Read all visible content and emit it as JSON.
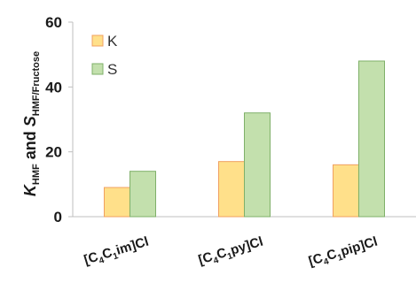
{
  "chart_data": {
    "type": "bar",
    "categories": [
      "[C4C1im]Cl",
      "[C4C1py]Cl",
      "[C4C1pip]Cl"
    ],
    "series": [
      {
        "name": "K",
        "values": [
          9,
          17,
          16
        ],
        "color": "#FFE08A",
        "stroke": "#F0A060"
      },
      {
        "name": "S",
        "values": [
          14,
          32,
          48
        ],
        "color": "#C3E0AD",
        "stroke": "#7FB069"
      }
    ],
    "ylabel": {
      "main1": "K",
      "sub1": "HMF",
      "mid": " and ",
      "main2": "S",
      "sub2": "HMF/Fructose"
    },
    "ylim": [
      0,
      60
    ],
    "yticks": [
      0,
      20,
      40,
      60
    ],
    "grid": false,
    "legend_position": "top-left",
    "category_labels": [
      {
        "prefix": "[C",
        "s1": "4",
        "mid": "C",
        "s2": "1",
        "suffix": "im]Cl"
      },
      {
        "prefix": "[C",
        "s1": "4",
        "mid": "C",
        "s2": "1",
        "suffix": "py]Cl"
      },
      {
        "prefix": "[C",
        "s1": "4",
        "mid": "C",
        "s2": "1",
        "suffix": "pip]Cl"
      }
    ]
  }
}
